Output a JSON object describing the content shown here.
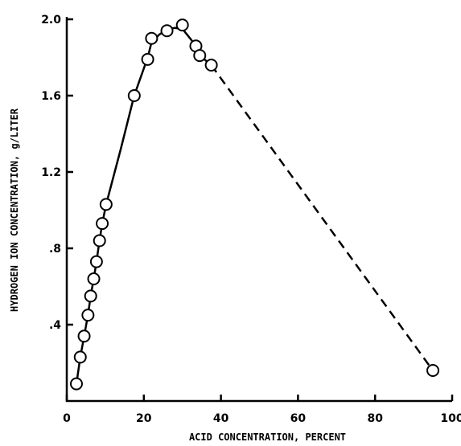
{
  "chart_data": {
    "type": "scatter",
    "title": "",
    "xlabel": "ACID CONCENTRATION, PERCENT",
    "ylabel": "HYDROGEN ION CONCENTRATION, g/LITER",
    "xlim": [
      0,
      100
    ],
    "ylim": [
      0,
      2.0
    ],
    "xticks": [
      {
        "value": 0,
        "label": "0"
      },
      {
        "value": 20,
        "label": "20"
      },
      {
        "value": 40,
        "label": "40"
      },
      {
        "value": 60,
        "label": "60"
      },
      {
        "value": 80,
        "label": "80"
      },
      {
        "value": 100,
        "label": "100"
      }
    ],
    "yticks": [
      {
        "value": 0.4,
        "label": ".4"
      },
      {
        "value": 0.8,
        "label": ".8"
      },
      {
        "value": 1.2,
        "label": "1.2"
      },
      {
        "value": 1.6,
        "label": "1.6"
      },
      {
        "value": 2.0,
        "label": "2.0"
      }
    ],
    "grid": false,
    "points": [
      {
        "x": 2.5,
        "y": 0.09
      },
      {
        "x": 3.5,
        "y": 0.23
      },
      {
        "x": 4.5,
        "y": 0.34
      },
      {
        "x": 5.5,
        "y": 0.45
      },
      {
        "x": 6.2,
        "y": 0.55
      },
      {
        "x": 7.0,
        "y": 0.64
      },
      {
        "x": 7.7,
        "y": 0.73
      },
      {
        "x": 8.5,
        "y": 0.84
      },
      {
        "x": 9.2,
        "y": 0.93
      },
      {
        "x": 10.2,
        "y": 1.03
      },
      {
        "x": 17.5,
        "y": 1.6
      },
      {
        "x": 21.0,
        "y": 1.79
      },
      {
        "x": 22.0,
        "y": 1.9
      },
      {
        "x": 26.0,
        "y": 1.94
      },
      {
        "x": 30.0,
        "y": 1.97
      },
      {
        "x": 33.5,
        "y": 1.86
      },
      {
        "x": 34.5,
        "y": 1.81
      },
      {
        "x": 37.5,
        "y": 1.76
      },
      {
        "x": 95.0,
        "y": 0.16
      }
    ],
    "solid_curve": [
      [
        2.5,
        0.09
      ],
      [
        3.5,
        0.23
      ],
      [
        4.5,
        0.34
      ],
      [
        5.5,
        0.45
      ],
      [
        6.2,
        0.55
      ],
      [
        7.0,
        0.64
      ],
      [
        7.7,
        0.73
      ],
      [
        8.5,
        0.84
      ],
      [
        9.2,
        0.93
      ],
      [
        10.2,
        1.03
      ],
      [
        14.0,
        1.32
      ],
      [
        17.5,
        1.6
      ],
      [
        21.0,
        1.8
      ],
      [
        22.0,
        1.88
      ],
      [
        24.0,
        1.92
      ],
      [
        26.0,
        1.945
      ],
      [
        28.0,
        1.955
      ],
      [
        30.0,
        1.95
      ],
      [
        32.0,
        1.9
      ],
      [
        33.5,
        1.86
      ],
      [
        34.5,
        1.81
      ],
      [
        37.5,
        1.76
      ]
    ],
    "dashed_curve": [
      [
        37.5,
        1.76
      ],
      [
        95.0,
        0.16
      ]
    ]
  }
}
